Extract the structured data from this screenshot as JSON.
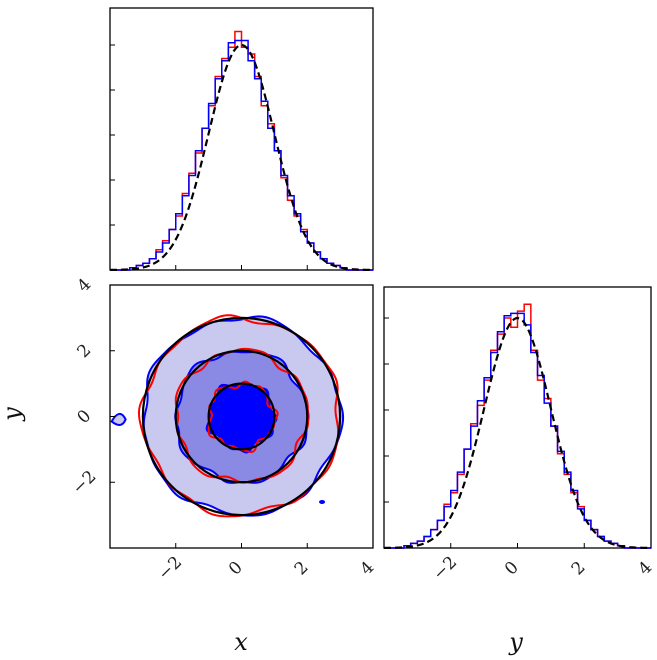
{
  "chart_data": [
    {
      "type": "histogram",
      "panel": "marginal-x",
      "xlim": [
        -4,
        4
      ],
      "ticks": [
        -2,
        0,
        2,
        4
      ],
      "series": [
        {
          "color": "#ff0000",
          "style": "step"
        },
        {
          "color": "#0000ff",
          "style": "step"
        },
        {
          "color": "#000000",
          "style": "dashed-curve"
        }
      ],
      "bins": {
        "start": -4,
        "width": 0.2
      },
      "red": [
        0.0,
        0.0,
        0.0,
        0.01,
        0.02,
        0.03,
        0.05,
        0.09,
        0.13,
        0.18,
        0.24,
        0.34,
        0.43,
        0.52,
        0.63,
        0.73,
        0.86,
        0.94,
        0.99,
        1.06,
        0.99,
        0.96,
        0.86,
        0.73,
        0.65,
        0.53,
        0.41,
        0.31,
        0.24,
        0.18,
        0.12,
        0.08,
        0.05,
        0.03,
        0.02,
        0.01,
        0.0,
        0.0,
        0.0,
        0.0
      ],
      "blue": [
        0.0,
        0.0,
        0.0,
        0.01,
        0.02,
        0.03,
        0.05,
        0.08,
        0.12,
        0.18,
        0.25,
        0.33,
        0.42,
        0.53,
        0.63,
        0.74,
        0.85,
        0.93,
        1.01,
        1.02,
        1.02,
        0.93,
        0.85,
        0.75,
        0.63,
        0.53,
        0.42,
        0.33,
        0.25,
        0.17,
        0.12,
        0.08,
        0.05,
        0.03,
        0.02,
        0.01,
        0.0,
        0.0,
        0.0,
        0.0
      ]
    },
    {
      "type": "contour",
      "panel": "joint",
      "xlabel": "x",
      "ylabel": "y",
      "xlim": [
        -4,
        4
      ],
      "ylim": [
        -4,
        4
      ],
      "xticks": [
        -2,
        0,
        2,
        4
      ],
      "yticks": [
        -2,
        0,
        2,
        4
      ],
      "levels": [
        {
          "radius": 3.0,
          "fill": "#c9c9f0"
        },
        {
          "radius": 2.0,
          "fill": "#8a8ae4"
        },
        {
          "radius": 1.0,
          "fill": "#0000ff"
        }
      ],
      "colors": {
        "blue": "#0000ff",
        "red": "#ff0000",
        "reference": "#000000"
      }
    },
    {
      "type": "histogram",
      "panel": "marginal-y",
      "xlabel": "y",
      "xlim": [
        -4,
        4
      ],
      "ticks": [
        -2,
        0,
        2,
        4
      ],
      "series": [
        {
          "color": "#ff0000",
          "style": "step"
        },
        {
          "color": "#0000ff",
          "style": "step"
        },
        {
          "color": "#000000",
          "style": "dashed-curve"
        }
      ],
      "bins": {
        "start": -4,
        "width": 0.2
      },
      "red": [
        0.0,
        0.0,
        0.0,
        0.01,
        0.02,
        0.03,
        0.05,
        0.08,
        0.12,
        0.19,
        0.24,
        0.32,
        0.43,
        0.54,
        0.62,
        0.73,
        0.86,
        0.93,
        1.0,
        0.96,
        1.03,
        1.06,
        0.86,
        0.73,
        0.65,
        0.53,
        0.41,
        0.32,
        0.24,
        0.18,
        0.12,
        0.08,
        0.05,
        0.03,
        0.02,
        0.01,
        0.0,
        0.0,
        0.0,
        0.0
      ],
      "blue": [
        0.0,
        0.0,
        0.0,
        0.01,
        0.02,
        0.03,
        0.05,
        0.08,
        0.12,
        0.18,
        0.25,
        0.33,
        0.43,
        0.53,
        0.64,
        0.74,
        0.85,
        0.94,
        1.01,
        1.02,
        1.02,
        0.97,
        0.85,
        0.75,
        0.63,
        0.53,
        0.42,
        0.33,
        0.25,
        0.17,
        0.12,
        0.08,
        0.05,
        0.03,
        0.02,
        0.01,
        0.0,
        0.0,
        0.0,
        0.0
      ]
    }
  ]
}
